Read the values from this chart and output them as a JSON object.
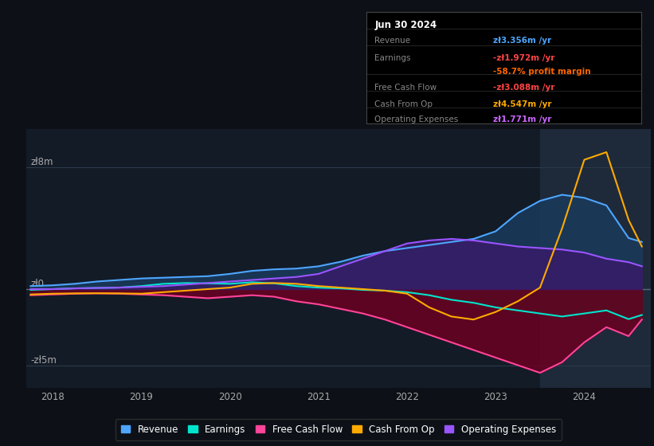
{
  "bg_color": "#0d1117",
  "plot_bg_color": "#131b27",
  "ylabel_top": "zł8m",
  "ylabel_zero": "zł0",
  "ylabel_bottom": "-zł5m",
  "ylim": [
    -6500000,
    10500000
  ],
  "xlim_start": 2017.7,
  "xlim_end": 2024.75,
  "xticks": [
    2018,
    2019,
    2020,
    2021,
    2022,
    2023,
    2024
  ],
  "highlight_start": 2023.5,
  "highlight_color": "#1e2a3a",
  "grid_color": "#2a3a4a",
  "zero_line_color": "#5a6a7a",
  "info_box": {
    "title": "Jun 30 2024",
    "rows": [
      {
        "label": "Revenue",
        "value": "zł3.356m /yr",
        "value_color": "#4da6ff"
      },
      {
        "label": "Earnings",
        "value": "-zł1.972m /yr",
        "value_color": "#ff4444"
      },
      {
        "label": "",
        "value": "-58.7% profit margin",
        "value_color": "#ff6600"
      },
      {
        "label": "Free Cash Flow",
        "value": "-zł3.088m /yr",
        "value_color": "#ff4444"
      },
      {
        "label": "Cash From Op",
        "value": "zł4.547m /yr",
        "value_color": "#ffaa00"
      },
      {
        "label": "Operating Expenses",
        "value": "zł1.771m /yr",
        "value_color": "#cc66ff"
      }
    ]
  },
  "series": {
    "revenue": {
      "color": "#4da6ff",
      "fill_color": "#1a3a5c",
      "label": "Revenue",
      "x": [
        2017.75,
        2018.0,
        2018.25,
        2018.5,
        2018.75,
        2019.0,
        2019.25,
        2019.5,
        2019.75,
        2020.0,
        2020.25,
        2020.5,
        2020.75,
        2021.0,
        2021.25,
        2021.5,
        2021.75,
        2022.0,
        2022.25,
        2022.5,
        2022.75,
        2023.0,
        2023.25,
        2023.5,
        2023.75,
        2024.0,
        2024.25,
        2024.5,
        2024.65
      ],
      "y": [
        200000,
        250000,
        350000,
        500000,
        600000,
        700000,
        750000,
        800000,
        850000,
        1000000,
        1200000,
        1300000,
        1350000,
        1500000,
        1800000,
        2200000,
        2500000,
        2700000,
        2900000,
        3100000,
        3300000,
        3800000,
        5000000,
        5800000,
        6200000,
        6000000,
        5500000,
        3356000,
        3100000
      ]
    },
    "earnings": {
      "color": "#00e5cc",
      "fill_color": "#004433",
      "label": "Earnings",
      "x": [
        2017.75,
        2018.0,
        2018.25,
        2018.5,
        2018.75,
        2019.0,
        2019.25,
        2019.5,
        2019.75,
        2020.0,
        2020.25,
        2020.5,
        2020.75,
        2021.0,
        2021.25,
        2021.5,
        2021.75,
        2022.0,
        2022.25,
        2022.5,
        2022.75,
        2023.0,
        2023.25,
        2023.5,
        2023.75,
        2024.0,
        2024.25,
        2024.5,
        2024.65
      ],
      "y": [
        -50000,
        0,
        50000,
        80000,
        100000,
        200000,
        350000,
        400000,
        380000,
        350000,
        450000,
        380000,
        200000,
        100000,
        50000,
        -50000,
        -100000,
        -200000,
        -400000,
        -700000,
        -900000,
        -1200000,
        -1400000,
        -1600000,
        -1800000,
        -1600000,
        -1400000,
        -1972000,
        -1700000
      ]
    },
    "free_cash_flow": {
      "color": "#ff4499",
      "fill_color": "#6a0020",
      "label": "Free Cash Flow",
      "x": [
        2017.75,
        2018.0,
        2018.25,
        2018.5,
        2018.75,
        2019.0,
        2019.25,
        2019.5,
        2019.75,
        2020.0,
        2020.25,
        2020.5,
        2020.75,
        2021.0,
        2021.25,
        2021.5,
        2021.75,
        2022.0,
        2022.25,
        2022.5,
        2022.75,
        2023.0,
        2023.25,
        2023.5,
        2023.75,
        2024.0,
        2024.25,
        2024.5,
        2024.65
      ],
      "y": [
        -400000,
        -350000,
        -300000,
        -280000,
        -300000,
        -350000,
        -400000,
        -500000,
        -600000,
        -500000,
        -400000,
        -500000,
        -800000,
        -1000000,
        -1300000,
        -1600000,
        -2000000,
        -2500000,
        -3000000,
        -3500000,
        -4000000,
        -4500000,
        -5000000,
        -5500000,
        -4800000,
        -3500000,
        -2500000,
        -3088000,
        -2000000
      ]
    },
    "cash_from_op": {
      "color": "#ffaa00",
      "label": "Cash From Op",
      "x": [
        2017.75,
        2018.0,
        2018.25,
        2018.5,
        2018.75,
        2019.0,
        2019.25,
        2019.5,
        2019.75,
        2020.0,
        2020.25,
        2020.5,
        2020.75,
        2021.0,
        2021.25,
        2021.5,
        2021.75,
        2022.0,
        2022.25,
        2022.5,
        2022.75,
        2023.0,
        2023.25,
        2023.5,
        2023.75,
        2024.0,
        2024.25,
        2024.5,
        2024.65
      ],
      "y": [
        -350000,
        -300000,
        -280000,
        -270000,
        -280000,
        -300000,
        -200000,
        -100000,
        0,
        100000,
        350000,
        400000,
        350000,
        200000,
        100000,
        0,
        -100000,
        -300000,
        -1200000,
        -1800000,
        -2000000,
        -1500000,
        -800000,
        100000,
        4000000,
        8500000,
        9000000,
        4547000,
        2800000
      ]
    },
    "operating_expenses": {
      "color": "#9955ff",
      "fill_color": "#3a1a6a",
      "label": "Operating Expenses",
      "x": [
        2017.75,
        2018.0,
        2018.25,
        2018.5,
        2018.75,
        2019.0,
        2019.25,
        2019.5,
        2019.75,
        2020.0,
        2020.25,
        2020.5,
        2020.75,
        2021.0,
        2021.25,
        2021.5,
        2021.75,
        2022.0,
        2022.25,
        2022.5,
        2022.75,
        2023.0,
        2023.25,
        2023.5,
        2023.75,
        2024.0,
        2024.25,
        2024.5,
        2024.65
      ],
      "y": [
        0,
        0,
        50000,
        80000,
        100000,
        150000,
        200000,
        300000,
        400000,
        500000,
        600000,
        700000,
        800000,
        1000000,
        1500000,
        2000000,
        2500000,
        3000000,
        3200000,
        3300000,
        3200000,
        3000000,
        2800000,
        2700000,
        2600000,
        2400000,
        2000000,
        1771000,
        1500000
      ]
    }
  },
  "legend": [
    {
      "label": "Revenue",
      "color": "#4da6ff"
    },
    {
      "label": "Earnings",
      "color": "#00e5cc"
    },
    {
      "label": "Free Cash Flow",
      "color": "#ff4499"
    },
    {
      "label": "Cash From Op",
      "color": "#ffaa00"
    },
    {
      "label": "Operating Expenses",
      "color": "#9955ff"
    }
  ]
}
